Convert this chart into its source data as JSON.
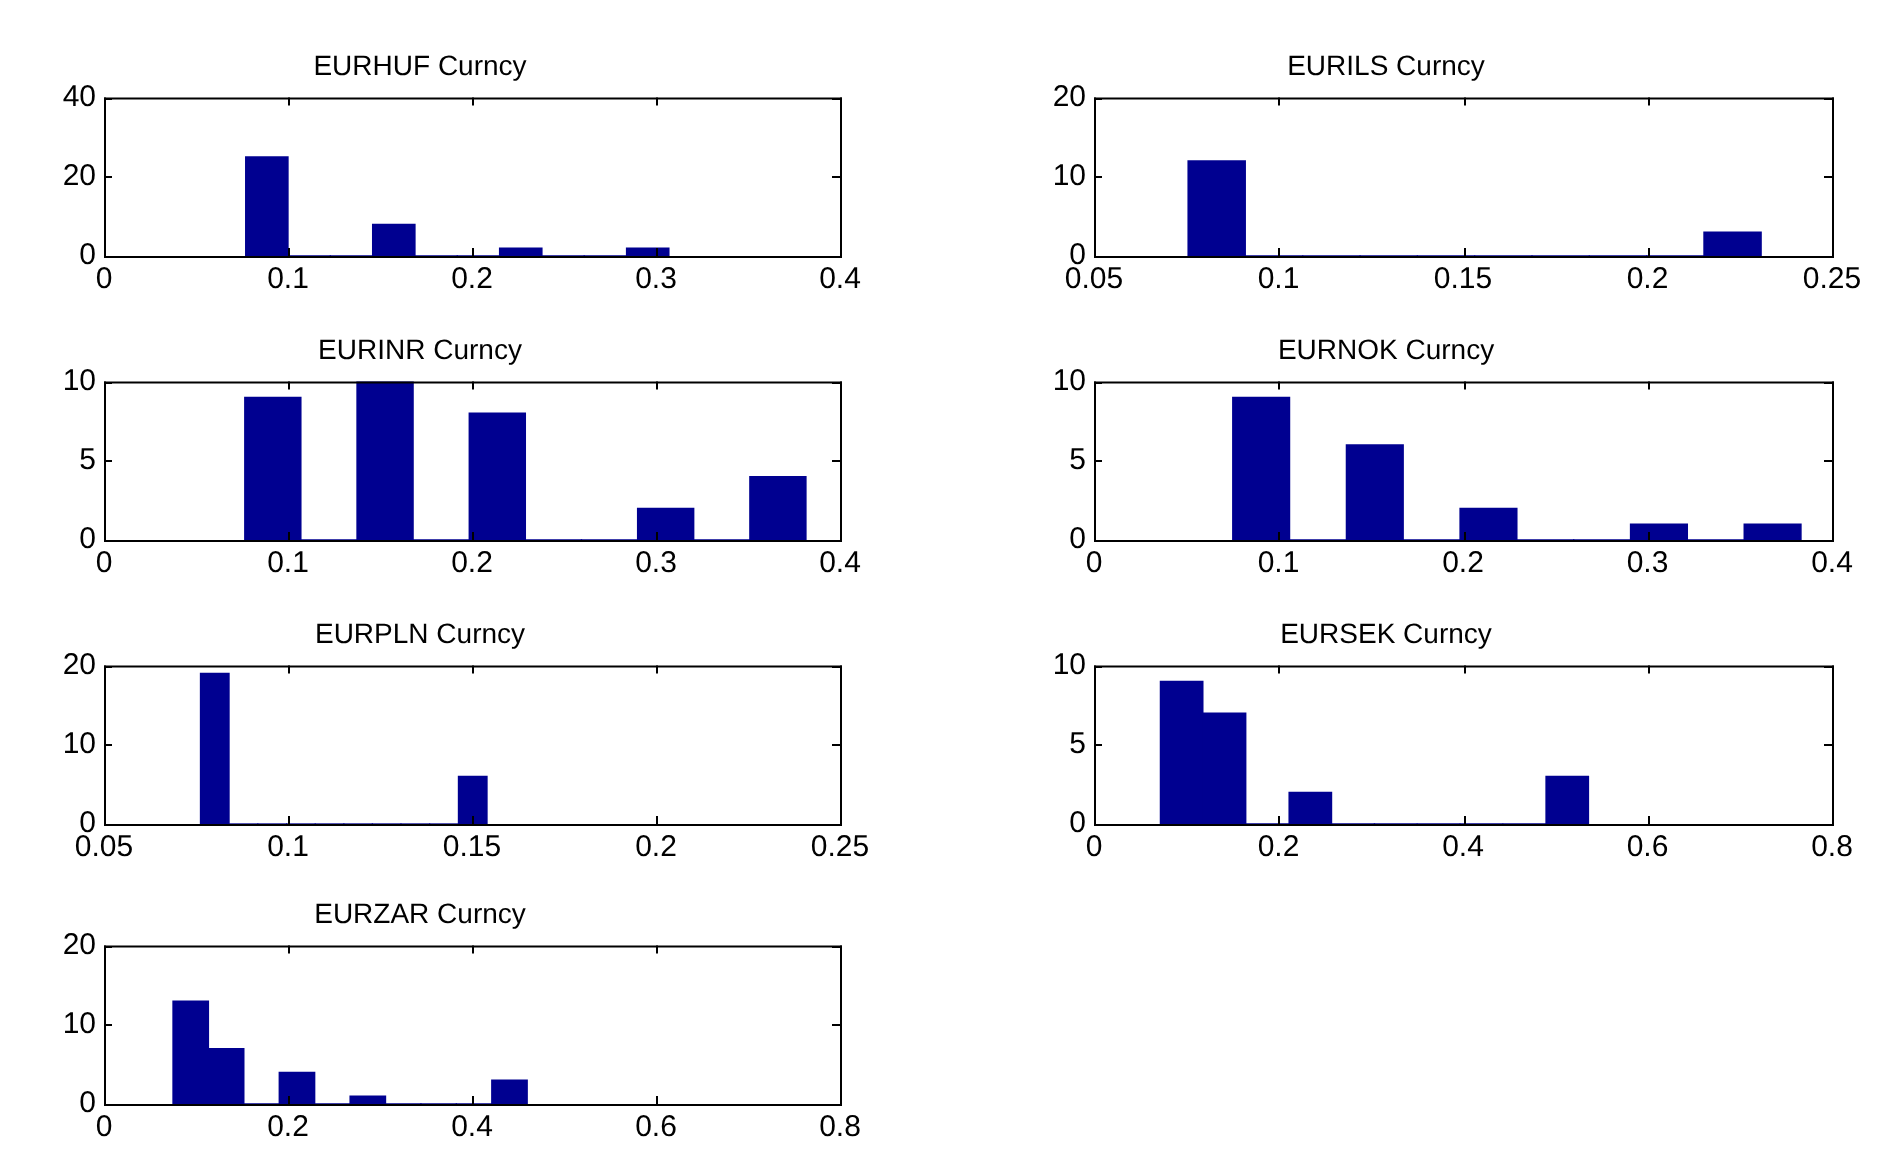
{
  "chart_data": [
    {
      "type": "histogram",
      "title": "EURHUF Curncy",
      "color": "#000090",
      "bins": [
        0.077,
        0.1,
        0.123,
        0.146,
        0.169,
        0.192,
        0.215,
        0.238,
        0.261,
        0.284,
        0.307
      ],
      "values": [
        25,
        0,
        0,
        8,
        0,
        0,
        2,
        0,
        0,
        2
      ],
      "xlim": [
        0,
        0.4
      ],
      "xticks": [
        0,
        0.1,
        0.2,
        0.3,
        0.4
      ],
      "ylim": [
        0,
        40
      ],
      "yticks": [
        0,
        20,
        40
      ]
    },
    {
      "type": "histogram",
      "title": "EURILS Curncy",
      "color": "#000090",
      "bins": [
        0.0755,
        0.091,
        0.1066,
        0.1221,
        0.1376,
        0.1532,
        0.1687,
        0.1842,
        0.1998,
        0.2153,
        0.2308
      ],
      "values": [
        12,
        0,
        0,
        0,
        0,
        0,
        0,
        0,
        0,
        3
      ],
      "xlim": [
        0.05,
        0.25
      ],
      "xticks": [
        0.05,
        0.1,
        0.15,
        0.2,
        0.25
      ],
      "ylim": [
        0,
        20
      ],
      "yticks": [
        0,
        10,
        20
      ]
    },
    {
      "type": "histogram",
      "title": "EURINR Curncy",
      "color": "#000090",
      "bins": [
        0.0765,
        0.107,
        0.1375,
        0.168,
        0.1985,
        0.229,
        0.2595,
        0.29,
        0.3205,
        0.351,
        0.3815
      ],
      "values": [
        9,
        0,
        10,
        0,
        8,
        0,
        0,
        2,
        0,
        4
      ],
      "xlim": [
        0,
        0.4
      ],
      "xticks": [
        0,
        0.1,
        0.2,
        0.3,
        0.4
      ],
      "ylim": [
        0,
        10
      ],
      "yticks": [
        0,
        5,
        10
      ]
    },
    {
      "type": "histogram",
      "title": "EURNOK Curncy",
      "color": "#000090",
      "bins": [
        0.0752,
        0.106,
        0.1368,
        0.1676,
        0.1984,
        0.2292,
        0.26,
        0.2908,
        0.3216,
        0.3524,
        0.3832
      ],
      "values": [
        9,
        0,
        6,
        0,
        2,
        0,
        0,
        1,
        0,
        1
      ],
      "xlim": [
        0,
        0.4
      ],
      "xticks": [
        0,
        0.1,
        0.2,
        0.3,
        0.4
      ],
      "ylim": [
        0,
        10
      ],
      "yticks": [
        0,
        5,
        10
      ]
    },
    {
      "type": "histogram",
      "title": "EURPLN Curncy",
      "color": "#000090",
      "bins": [
        0.0762,
        0.084,
        0.0918,
        0.0996,
        0.1074,
        0.1152,
        0.1229,
        0.1307,
        0.1385,
        0.1463,
        0.1541
      ],
      "values": [
        19,
        0,
        0,
        0,
        0,
        0,
        0,
        0,
        0,
        6
      ],
      "xlim": [
        0.05,
        0.25
      ],
      "xticks": [
        0.05,
        0.1,
        0.15,
        0.2,
        0.25
      ],
      "ylim": [
        0,
        20
      ],
      "yticks": [
        0,
        10,
        20
      ]
    },
    {
      "type": "histogram",
      "title": "EURSEK Curncy",
      "color": "#000090",
      "bins": [
        0.072,
        0.118,
        0.165,
        0.211,
        0.258,
        0.304,
        0.35,
        0.397,
        0.443,
        0.49,
        0.536
      ],
      "values": [
        9,
        7,
        0,
        2,
        0,
        0,
        0,
        0,
        0,
        3
      ],
      "xlim": [
        0,
        0.8
      ],
      "xticks": [
        0,
        0.2,
        0.4,
        0.6,
        0.8
      ],
      "ylim": [
        0,
        10
      ],
      "yticks": [
        0,
        5,
        10
      ]
    },
    {
      "type": "histogram",
      "title": "EURZAR Curncy",
      "color": "#000090",
      "bins": [
        0.075,
        0.1135,
        0.152,
        0.1905,
        0.229,
        0.2675,
        0.306,
        0.3445,
        0.383,
        0.4215,
        0.46
      ],
      "values": [
        13,
        7,
        0,
        4,
        0,
        1,
        0,
        0,
        0,
        3
      ],
      "xlim": [
        0,
        0.8
      ],
      "xticks": [
        0,
        0.2,
        0.4,
        0.6,
        0.8
      ],
      "ylim": [
        0,
        20
      ],
      "yticks": [
        0,
        10,
        20
      ]
    }
  ]
}
